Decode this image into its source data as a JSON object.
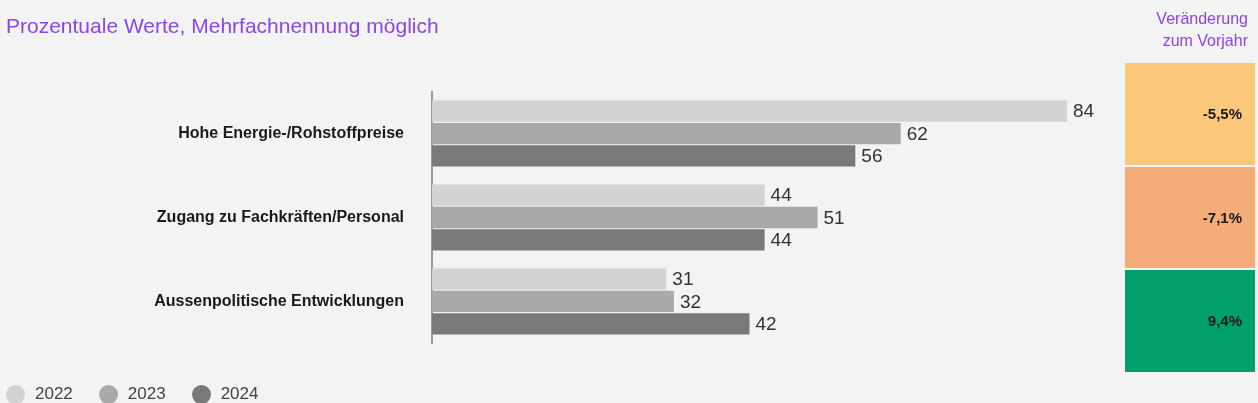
{
  "chart_data": {
    "type": "bar",
    "orientation": "horizontal",
    "title": "Prozentuale Werte, Mehrfachnennung möglich",
    "categories": [
      "Hohe Energie-/Rohstoffpreise",
      "Zugang zu Fachkräften/Personal",
      "Aussenpolitische Entwicklungen"
    ],
    "series": [
      {
        "name": "2022",
        "color": "#d3d3d3",
        "values": [
          84,
          44,
          31
        ]
      },
      {
        "name": "2023",
        "color": "#a9a9a9",
        "values": [
          62,
          51,
          32
        ]
      },
      {
        "name": "2024",
        "color": "#79797b",
        "values": [
          56,
          44,
          42
        ]
      }
    ],
    "annotations": [
      "Veränderung zum Vorjahr",
      "-5,5%",
      "-7,1%",
      "9,4%"
    ],
    "tick_labels": "y",
    "data_labels": true,
    "legend": "bottom left"
  }
}
